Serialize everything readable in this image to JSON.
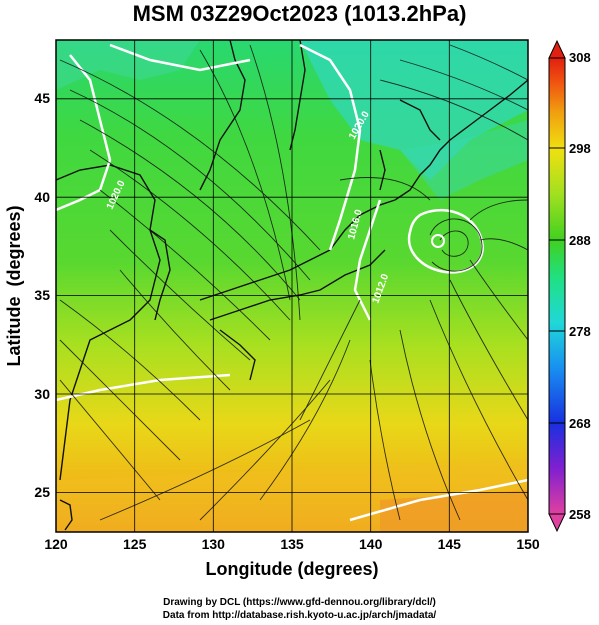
{
  "title": "MSM 03Z29Oct2023 (1013.2hPa)",
  "map": {
    "lon_range": [
      120,
      150
    ],
    "lat_range": [
      22.5,
      47.5
    ],
    "x_ticks": [
      "120",
      "125",
      "130",
      "135",
      "140",
      "145",
      "150"
    ],
    "y_ticks": [
      "25",
      "30",
      "35",
      "40",
      "45"
    ],
    "xlabel": "Longitude (degrees)",
    "ylabel": "Latitude  (degrees)",
    "grid": true,
    "contour_labels": [
      "1012.0",
      "1016.0",
      "1020.0",
      "1020.0"
    ],
    "low_center": {
      "lon": 144,
      "lat": 38
    }
  },
  "colorbar": {
    "ticks": [
      "308",
      "298",
      "288",
      "278",
      "268",
      "258"
    ],
    "min": 258,
    "max": 308,
    "colors": [
      "#e040a0",
      "#8020d0",
      "#1830e0",
      "#1890f0",
      "#20d8d8",
      "#20e080",
      "#40d020",
      "#a0e020",
      "#f0e010",
      "#f0a010",
      "#f05010",
      "#e02010"
    ]
  },
  "footer": {
    "line1": "Drawing by DCL (https://www.gfd-dennou.org/library/dcl/)",
    "line2": "Data from http://database.rish.kyoto-u.ac.jp/arch/jmadata/"
  }
}
